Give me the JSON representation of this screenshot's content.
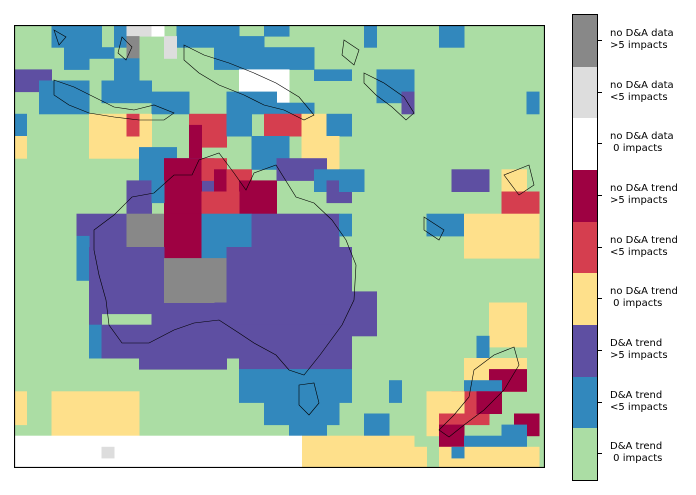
{
  "colors": {
    "da_0": "#abdda4",
    "da_lt5": "#3288bd",
    "da_gt5": "#5e4fa2",
    "nodt_0": "#fee08b",
    "nodt_lt5": "#d53e4f",
    "nodt_gt5": "#9e0142",
    "nodata_0": "#ffffff",
    "nodata_lt5": "#dddddd",
    "nodata_gt5": "#888888",
    "coast": "#000000"
  },
  "legend": [
    {
      "key": "nodata_gt5",
      "line1": "no D&A data",
      "line2": ">5 impacts"
    },
    {
      "key": "nodata_lt5",
      "line1": "no D&A data",
      "line2": "<5 impacts"
    },
    {
      "key": "nodata_0",
      "line1": "no D&A data",
      "line2": " 0 impacts"
    },
    {
      "key": "nodt_gt5",
      "line1": "no D&A trend",
      "line2": ">5 impacts"
    },
    {
      "key": "nodt_lt5",
      "line1": "no D&A trend",
      "line2": "<5 impacts"
    },
    {
      "key": "nodt_0",
      "line1": "no D&A trend",
      "line2": " 0 impacts"
    },
    {
      "key": "da_gt5",
      "line1": "D&A trend",
      "line2": ">5 impacts"
    },
    {
      "key": "da_lt5",
      "line1": "D&A trend",
      "line2": "<5 impacts"
    },
    {
      "key": "da_0",
      "line1": "D&A trend",
      "line2": " 0 impacts"
    }
  ]
}
